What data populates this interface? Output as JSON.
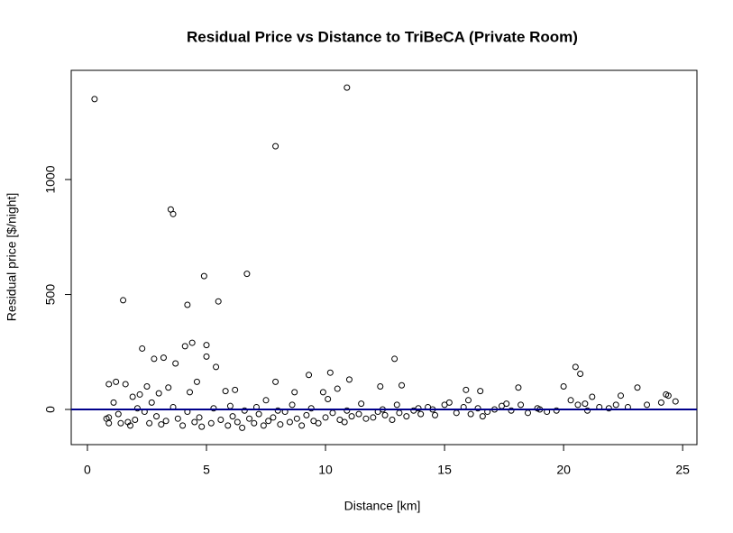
{
  "chart_data": {
    "type": "scatter",
    "title": "Residual Price vs Distance to TriBeCA (Private Room)",
    "xlabel": "Distance [km]",
    "ylabel": "Residual price [$/night]",
    "xlim": [
      -0.68,
      25.6
    ],
    "ylim": [
      -153,
      1475
    ],
    "xticks": [
      0,
      5,
      10,
      15,
      20,
      25
    ],
    "yticks": [
      0,
      500,
      1000
    ],
    "point_color": "#000000",
    "hline": {
      "y": 0,
      "color": "#00008b"
    },
    "x": [
      0.3,
      10.9,
      7.9,
      3.5,
      3.6,
      6.7,
      4.9,
      5.5,
      1.5,
      4.2,
      4.4,
      4.1,
      5.0,
      2.3,
      5.0,
      3.2,
      2.8,
      3.7,
      5.4,
      12.9,
      20.5,
      9.3,
      10.2,
      20.7,
      11.0,
      1.2,
      1.6,
      0.9,
      2.5,
      3.4,
      4.6,
      7.9,
      8.7,
      12.3,
      13.2,
      16.5,
      18.1,
      20.0,
      23.1,
      24.3,
      22.4,
      21.2,
      15.9,
      10.5,
      9.9,
      6.2,
      5.8,
      4.3,
      3.0,
      2.2,
      1.9,
      1.1,
      0.8,
      0.9,
      1.3,
      1.7,
      1.8,
      2.0,
      2.4,
      2.6,
      2.9,
      3.1,
      3.3,
      3.8,
      4.0,
      4.5,
      4.7,
      4.8,
      5.2,
      5.6,
      5.9,
      6.1,
      6.3,
      6.5,
      6.8,
      7.0,
      7.2,
      7.4,
      7.6,
      7.8,
      8.1,
      8.3,
      8.5,
      8.8,
      9.0,
      9.2,
      9.5,
      9.7,
      10.0,
      10.3,
      10.6,
      10.8,
      11.1,
      11.4,
      11.7,
      12.0,
      12.2,
      12.5,
      12.8,
      13.1,
      13.4,
      13.7,
      14.0,
      14.3,
      14.6,
      15.0,
      15.2,
      15.5,
      15.8,
      16.1,
      16.4,
      16.8,
      17.1,
      17.4,
      17.8,
      18.2,
      18.5,
      18.9,
      19.3,
      19.7,
      20.3,
      20.6,
      21.0,
      21.5,
      21.9,
      22.2,
      22.7,
      23.5,
      24.1,
      24.7,
      24.4,
      0.9,
      1.4,
      2.1,
      2.7,
      3.6,
      4.2,
      5.3,
      6.0,
      6.6,
      7.1,
      7.5,
      8.0,
      8.6,
      9.4,
      10.1,
      10.9,
      11.5,
      12.4,
      13.0,
      13.9,
      14.5,
      16.0,
      16.6,
      17.6,
      19.0,
      20.9
    ],
    "values": [
      1350,
      1400,
      1145,
      870,
      850,
      590,
      580,
      470,
      475,
      455,
      290,
      275,
      280,
      265,
      230,
      225,
      220,
      200,
      185,
      220,
      185,
      150,
      160,
      155,
      130,
      120,
      110,
      110,
      100,
      95,
      120,
      120,
      75,
      100,
      105,
      80,
      95,
      100,
      95,
      65,
      60,
      55,
      85,
      90,
      75,
      85,
      80,
      75,
      70,
      65,
      55,
      30,
      -40,
      -60,
      -20,
      -55,
      -70,
      -45,
      -10,
      -60,
      -30,
      -65,
      -50,
      -40,
      -70,
      -55,
      -35,
      -75,
      -60,
      -45,
      -70,
      -30,
      -55,
      -80,
      -40,
      -60,
      -20,
      -70,
      -50,
      -35,
      -65,
      -10,
      -55,
      -40,
      -70,
      -25,
      -50,
      -60,
      -35,
      -15,
      -45,
      -55,
      -30,
      -20,
      -40,
      -35,
      -10,
      -25,
      -45,
      -15,
      -30,
      -5,
      -20,
      10,
      -25,
      20,
      30,
      -15,
      10,
      -20,
      5,
      -10,
      0,
      15,
      -5,
      20,
      -15,
      5,
      -10,
      -5,
      40,
      20,
      -5,
      10,
      5,
      20,
      10,
      20,
      30,
      35,
      60,
      -35,
      -60,
      5,
      30,
      10,
      -10,
      5,
      15,
      -5,
      10,
      40,
      -5,
      20,
      5,
      45,
      -5,
      25,
      0,
      20,
      5,
      0,
      40,
      -30,
      25,
      0,
      25
    ]
  }
}
